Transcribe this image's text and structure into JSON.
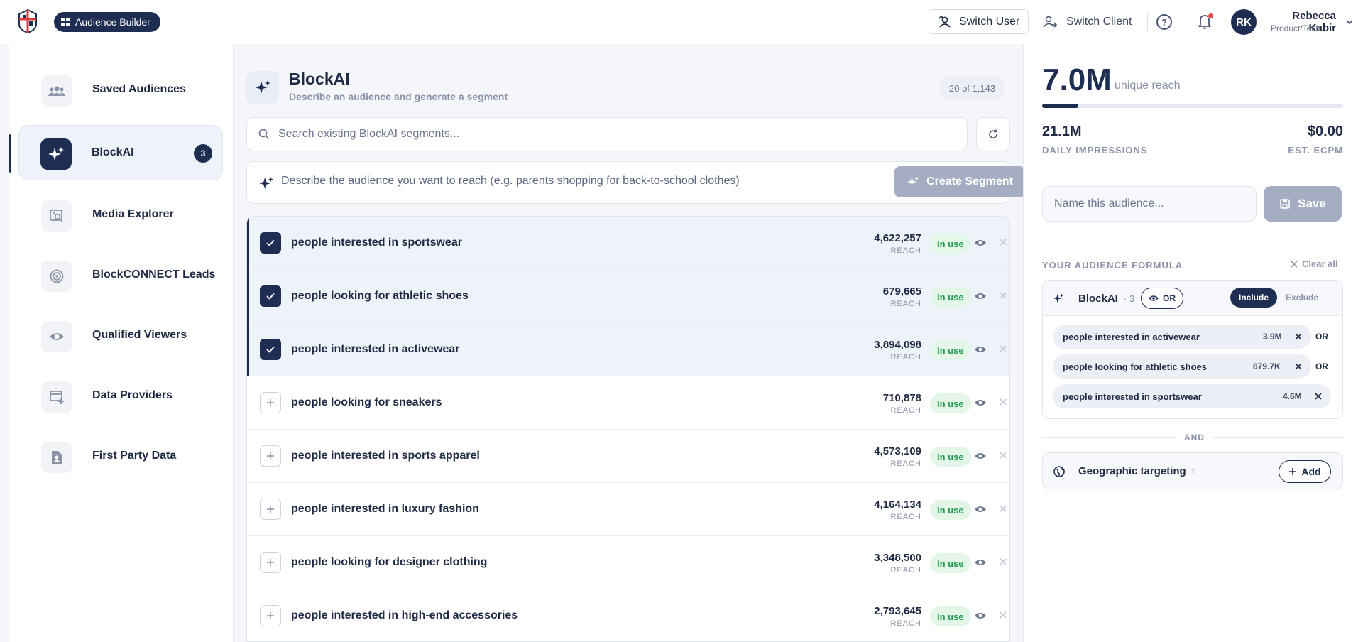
{
  "header": {
    "app_pill": "Audience Builder",
    "switch_user": "Switch User",
    "switch_client": "Switch Client",
    "user": {
      "initials": "RK",
      "name": "Rebecca Kabir",
      "org": "Product/Tech"
    }
  },
  "sidebar": {
    "items": [
      {
        "label": "Saved Audiences",
        "icon": "users-icon"
      },
      {
        "label": "BlockAI",
        "icon": "sparkle-icon",
        "badge": "3",
        "active": true
      },
      {
        "label": "Media Explorer",
        "icon": "media-search-icon"
      },
      {
        "label": "BlockCONNECT Leads",
        "icon": "target-icon"
      },
      {
        "label": "Qualified Viewers",
        "icon": "eye-check-icon"
      },
      {
        "label": "Data Providers",
        "icon": "data-add-icon"
      },
      {
        "label": "First Party Data",
        "icon": "file-person-icon"
      }
    ]
  },
  "main": {
    "title": "BlockAI",
    "subtitle": "Describe an audience and generate a segment",
    "count": "20 of 1,143",
    "search_placeholder": "Search existing BlockAI segments...",
    "prompt_placeholder": "Describe the audience you want to reach (e.g. parents shopping for back-to-school clothes)",
    "create_label": "Create Segment",
    "reach_label": "REACH",
    "in_use_label": "In use",
    "rows": [
      {
        "label": "people interested in sportswear",
        "reach": "4,622,257",
        "selected": true
      },
      {
        "label": "people looking for athletic shoes",
        "reach": "679,665",
        "selected": true
      },
      {
        "label": "people interested in activewear",
        "reach": "3,894,098",
        "selected": true
      },
      {
        "label": "people looking for sneakers",
        "reach": "710,878",
        "selected": false
      },
      {
        "label": "people interested in sports apparel",
        "reach": "4,573,109",
        "selected": false
      },
      {
        "label": "people interested in luxury fashion",
        "reach": "4,164,134",
        "selected": false
      },
      {
        "label": "people looking for designer clothing",
        "reach": "3,348,500",
        "selected": false
      },
      {
        "label": "people interested in high-end accessories",
        "reach": "2,793,645",
        "selected": false
      }
    ]
  },
  "panel": {
    "reach": "7.0M",
    "reach_label": "unique reach",
    "reach_fraction": 0.12,
    "impressions": "21.1M",
    "impressions_label": "DAILY IMPRESSIONS",
    "ecpm": "$0.00",
    "ecpm_label": "EST. ECPM",
    "name_placeholder": "Name this audience...",
    "save_label": "Save",
    "formula_label": "YOUR AUDIENCE FORMULA",
    "clear_all": "Clear all",
    "group": {
      "title": "BlockAI",
      "count": "· 3",
      "or_label": "OR",
      "include": "Include",
      "exclude": "Exclude",
      "chips": [
        {
          "label": "people interested in activewear",
          "value": "3.9M",
          "joiner": "OR"
        },
        {
          "label": "people looking for athletic shoes",
          "value": "679.7K",
          "joiner": "OR"
        },
        {
          "label": "people interested in sportswear",
          "value": "4.6M",
          "joiner": ""
        }
      ]
    },
    "and_label": "AND",
    "geo": {
      "title": "Geographic targeting",
      "count": "· 1",
      "add_label": "Add"
    }
  },
  "colors": {
    "brand": "#1e2d52",
    "in_use_bg": "#e3f6e8",
    "in_use_text": "#1f9a4a",
    "alert": "#e5484d"
  }
}
